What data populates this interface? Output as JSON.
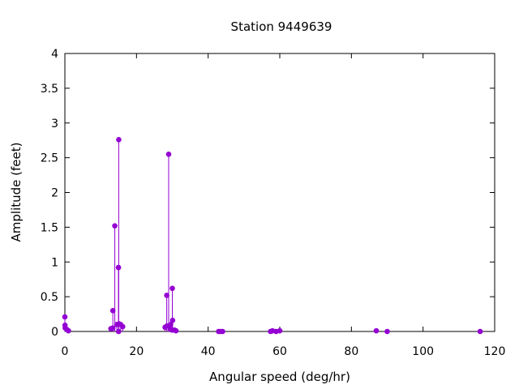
{
  "chart_data": {
    "type": "scatter",
    "style": "impulses-with-points",
    "title": "Station 9449639",
    "xlabel": "Angular speed (deg/hr)",
    "ylabel": "Amplitude (feet)",
    "xlim": [
      0,
      120
    ],
    "ylim": [
      0,
      4
    ],
    "xticks": [
      "0",
      "20",
      "40",
      "60",
      "80",
      "100",
      "120"
    ],
    "yticks": [
      "0",
      "0.5",
      "1",
      "1.5",
      "2",
      "2.5",
      "3",
      "3.5",
      "4"
    ],
    "grid": false,
    "legend": "none",
    "color": "#9400d3",
    "points": [
      {
        "x": 0.0,
        "y": 0.21
      },
      {
        "x": 0.04,
        "y": 0.09
      },
      {
        "x": 0.08,
        "y": 0.05
      },
      {
        "x": 0.5,
        "y": 0.03
      },
      {
        "x": 1.0,
        "y": 0.01
      },
      {
        "x": 12.85,
        "y": 0.04
      },
      {
        "x": 13.4,
        "y": 0.05
      },
      {
        "x": 13.4,
        "y": 0.3
      },
      {
        "x": 13.94,
        "y": 1.52
      },
      {
        "x": 14.5,
        "y": 0.1
      },
      {
        "x": 14.96,
        "y": 0.92
      },
      {
        "x": 15.0,
        "y": 0.0
      },
      {
        "x": 15.04,
        "y": 2.76
      },
      {
        "x": 15.1,
        "y": 0.11
      },
      {
        "x": 15.59,
        "y": 0.1
      },
      {
        "x": 16.14,
        "y": 0.07
      },
      {
        "x": 27.97,
        "y": 0.06
      },
      {
        "x": 28.44,
        "y": 0.52
      },
      {
        "x": 28.51,
        "y": 0.08
      },
      {
        "x": 28.98,
        "y": 2.55
      },
      {
        "x": 29.46,
        "y": 0.03
      },
      {
        "x": 29.53,
        "y": 0.1
      },
      {
        "x": 29.96,
        "y": 0.02
      },
      {
        "x": 30.0,
        "y": 0.62
      },
      {
        "x": 30.08,
        "y": 0.16
      },
      {
        "x": 30.63,
        "y": 0.02
      },
      {
        "x": 31.02,
        "y": 0.01
      },
      {
        "x": 42.93,
        "y": 0.0
      },
      {
        "x": 43.48,
        "y": 0.0
      },
      {
        "x": 44.03,
        "y": 0.0
      },
      {
        "x": 57.42,
        "y": 0.0
      },
      {
        "x": 57.97,
        "y": 0.01
      },
      {
        "x": 58.98,
        "y": 0.0
      },
      {
        "x": 60.0,
        "y": 0.01
      },
      {
        "x": 86.95,
        "y": 0.01
      },
      {
        "x": 90.0,
        "y": 0.0
      },
      {
        "x": 115.94,
        "y": 0.0
      }
    ]
  }
}
